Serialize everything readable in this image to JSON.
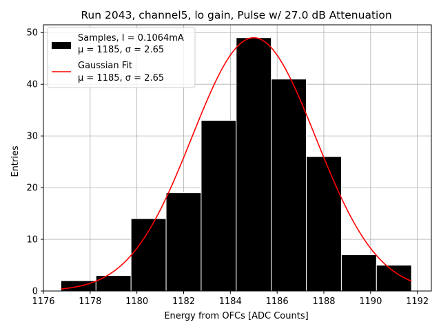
{
  "chart_data": {
    "type": "bar",
    "title": "Run 2043, channel5, lo gain, Pulse w/ 27.0 dB Attenuation",
    "xlabel": "Energy from OFCs [ADC Counts]",
    "ylabel": "Entries",
    "xlim": [
      1176,
      1192.6
    ],
    "ylim": [
      0,
      51.5
    ],
    "xticks": [
      1176,
      1178,
      1180,
      1182,
      1184,
      1186,
      1188,
      1190,
      1192
    ],
    "yticks": [
      0,
      10,
      20,
      30,
      40,
      50
    ],
    "grid": true,
    "legend_position": "top-left",
    "histogram": {
      "name": "Samples, I = 0.1064mA",
      "bin_edges": [
        1176.75,
        1178.25,
        1179.75,
        1181.25,
        1182.75,
        1184.25,
        1185.75,
        1187.25,
        1188.75,
        1190.25,
        1191.75
      ],
      "counts": [
        2,
        3,
        14,
        19,
        33,
        49,
        41,
        26,
        7,
        5
      ],
      "color": "#000000",
      "edge_color": "#ffffff"
    },
    "fit": {
      "name": "Gaussian Fit",
      "type": "gaussian",
      "amplitude": 49,
      "mu": 1185,
      "sigma": 2.65,
      "x_range": [
        1176.75,
        1191.75
      ],
      "color": "#ff0000"
    },
    "legend": [
      {
        "line1": "Samples, I = 0.1064mA",
        "line2": "μ = 1185, σ = 2.65",
        "marker": "patch",
        "color": "#000000"
      },
      {
        "line1": "Gaussian Fit",
        "line2": "μ = 1185, σ = 2.65",
        "marker": "line",
        "color": "#ff0000"
      }
    ]
  }
}
